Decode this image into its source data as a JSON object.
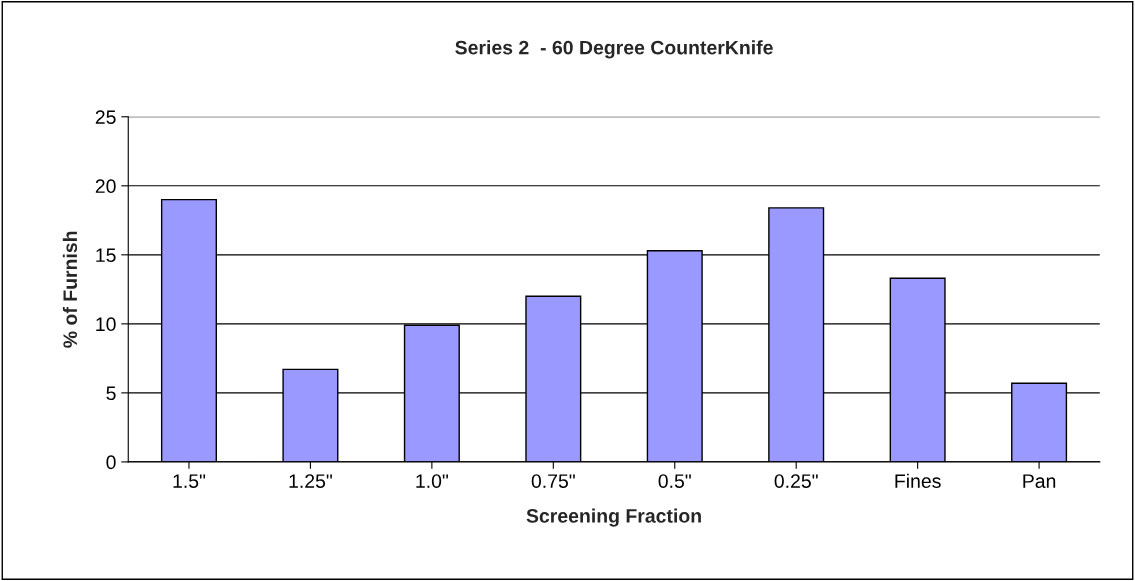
{
  "chart_data": {
    "type": "bar",
    "title": "Series 2  - 60 Degree CounterKnife",
    "xlabel": "Screening Fraction",
    "ylabel": "% of Furnish",
    "categories": [
      "1.5\"",
      "1.25\"",
      "1.0\"",
      "0.75\"",
      "0.5\"",
      "0.25\"",
      "Fines",
      "Pan"
    ],
    "values": [
      19,
      6.7,
      9.9,
      12,
      15.3,
      18.4,
      13.3,
      5.7
    ],
    "color": "#9999ff",
    "ylim": [
      0,
      25
    ],
    "yticks": [
      0,
      5,
      10,
      15,
      20,
      25
    ],
    "grid": "y"
  }
}
